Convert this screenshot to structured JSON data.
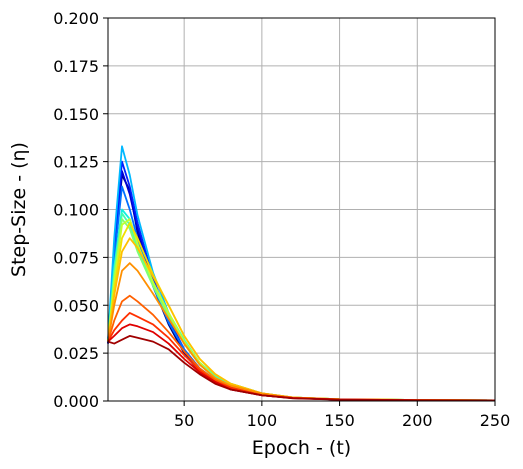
{
  "chart_data": {
    "type": "line",
    "title": "",
    "xlabel": "Epoch - (t)",
    "ylabel": "Step-Size - (η)",
    "xlim": [
      1,
      250
    ],
    "ylim": [
      0,
      0.2
    ],
    "xticks": [
      50,
      100,
      150,
      200,
      250
    ],
    "xtick_labels": [
      "50",
      "100",
      "150",
      "200",
      "250"
    ],
    "yticks": [
      0,
      0.025,
      0.05,
      0.075,
      0.1,
      0.125,
      0.15,
      0.175,
      0.2
    ],
    "ytick_labels": [
      "0.000",
      "0.025",
      "0.050",
      "0.075",
      "0.100",
      "0.125",
      "0.150",
      "0.175",
      "0.200"
    ],
    "grid": true,
    "colormap": "jet",
    "series": [
      {
        "color": "#000080",
        "x": [
          1,
          5,
          10,
          15,
          20,
          30,
          40,
          50,
          60,
          70,
          80,
          100,
          120,
          150,
          200,
          250
        ],
        "y": [
          0.03,
          0.075,
          0.118,
          0.11,
          0.088,
          0.06,
          0.04,
          0.025,
          0.015,
          0.01,
          0.006,
          0.003,
          0.0015,
          0.0008,
          0.0004,
          0.0003
        ]
      },
      {
        "color": "#0000d0",
        "x": [
          1,
          5,
          10,
          15,
          20,
          30,
          40,
          50,
          60,
          70,
          80,
          100,
          120,
          150,
          200,
          250
        ],
        "y": [
          0.03,
          0.078,
          0.12,
          0.108,
          0.09,
          0.062,
          0.042,
          0.026,
          0.016,
          0.011,
          0.007,
          0.003,
          0.0016,
          0.0008,
          0.0004,
          0.0003
        ]
      },
      {
        "color": "#0020ff",
        "x": [
          1,
          5,
          10,
          15,
          20,
          30,
          40,
          50,
          60,
          70,
          80,
          100,
          120,
          150,
          200,
          250
        ],
        "y": [
          0.031,
          0.08,
          0.125,
          0.112,
          0.093,
          0.064,
          0.043,
          0.027,
          0.017,
          0.011,
          0.007,
          0.003,
          0.0016,
          0.0008,
          0.0004,
          0.0003
        ]
      },
      {
        "color": "#0070ff",
        "x": [
          1,
          5,
          10,
          15,
          20,
          30,
          40,
          50,
          60,
          70,
          80,
          100,
          120,
          150,
          200,
          250
        ],
        "y": [
          0.031,
          0.074,
          0.112,
          0.1,
          0.085,
          0.06,
          0.041,
          0.027,
          0.017,
          0.011,
          0.007,
          0.003,
          0.0016,
          0.0008,
          0.0004,
          0.0003
        ]
      },
      {
        "color": "#00b8ff",
        "x": [
          1,
          5,
          10,
          15,
          20,
          30,
          40,
          50,
          60,
          70,
          80,
          100,
          120,
          150,
          200,
          250
        ],
        "y": [
          0.032,
          0.085,
          0.133,
          0.118,
          0.097,
          0.067,
          0.046,
          0.03,
          0.019,
          0.012,
          0.008,
          0.004,
          0.0018,
          0.0009,
          0.0005,
          0.0003
        ]
      },
      {
        "color": "#10f0e0",
        "x": [
          1,
          5,
          10,
          15,
          20,
          30,
          40,
          50,
          60,
          70,
          80,
          100,
          120,
          150,
          200,
          250
        ],
        "y": [
          0.031,
          0.07,
          0.1,
          0.095,
          0.082,
          0.06,
          0.044,
          0.03,
          0.02,
          0.013,
          0.009,
          0.004,
          0.0018,
          0.0009,
          0.0005,
          0.0003
        ]
      },
      {
        "color": "#40ffb0",
        "x": [
          1,
          5,
          10,
          15,
          20,
          30,
          40,
          50,
          60,
          70,
          80,
          100,
          120,
          150,
          200,
          250
        ],
        "y": [
          0.031,
          0.068,
          0.098,
          0.092,
          0.08,
          0.062,
          0.046,
          0.032,
          0.02,
          0.013,
          0.009,
          0.004,
          0.0018,
          0.0009,
          0.0005,
          0.0003
        ]
      },
      {
        "color": "#80ff70",
        "x": [
          1,
          5,
          10,
          15,
          20,
          30,
          40,
          50,
          60,
          70,
          80,
          100,
          120,
          150,
          200,
          250
        ],
        "y": [
          0.031,
          0.065,
          0.095,
          0.09,
          0.078,
          0.06,
          0.044,
          0.03,
          0.019,
          0.012,
          0.008,
          0.004,
          0.0018,
          0.0009,
          0.0005,
          0.0003
        ]
      },
      {
        "color": "#c0ff30",
        "x": [
          1,
          5,
          10,
          15,
          20,
          30,
          40,
          50,
          60,
          70,
          80,
          100,
          120,
          150,
          200,
          250
        ],
        "y": [
          0.031,
          0.062,
          0.092,
          0.095,
          0.082,
          0.062,
          0.046,
          0.031,
          0.02,
          0.012,
          0.008,
          0.004,
          0.0018,
          0.0009,
          0.0005,
          0.0003
        ]
      },
      {
        "color": "#f0e000",
        "x": [
          1,
          5,
          10,
          15,
          20,
          30,
          40,
          50,
          60,
          70,
          80,
          100,
          120,
          150,
          200,
          250
        ],
        "y": [
          0.031,
          0.058,
          0.085,
          0.093,
          0.085,
          0.066,
          0.05,
          0.034,
          0.022,
          0.014,
          0.009,
          0.004,
          0.0018,
          0.0009,
          0.0005,
          0.0003
        ]
      },
      {
        "color": "#ffc000",
        "x": [
          1,
          5,
          10,
          15,
          20,
          30,
          40,
          50,
          60,
          70,
          80,
          100,
          120,
          150,
          200,
          250
        ],
        "y": [
          0.031,
          0.055,
          0.078,
          0.085,
          0.08,
          0.065,
          0.05,
          0.034,
          0.022,
          0.014,
          0.009,
          0.004,
          0.0018,
          0.0009,
          0.0005,
          0.0003
        ]
      },
      {
        "color": "#ff9000",
        "x": [
          1,
          5,
          10,
          15,
          20,
          30,
          40,
          50,
          60,
          70,
          80,
          100,
          120,
          150,
          200,
          250
        ],
        "y": [
          0.031,
          0.05,
          0.068,
          0.072,
          0.068,
          0.056,
          0.043,
          0.03,
          0.019,
          0.012,
          0.008,
          0.004,
          0.0018,
          0.0009,
          0.0005,
          0.0003
        ]
      },
      {
        "color": "#ff6000",
        "x": [
          1,
          5,
          10,
          15,
          20,
          30,
          40,
          50,
          60,
          70,
          80,
          100,
          120,
          150,
          200,
          250
        ],
        "y": [
          0.031,
          0.042,
          0.052,
          0.055,
          0.052,
          0.045,
          0.036,
          0.026,
          0.017,
          0.011,
          0.007,
          0.003,
          0.0016,
          0.0008,
          0.0004,
          0.0003
        ]
      },
      {
        "color": "#ff3000",
        "x": [
          1,
          5,
          10,
          15,
          20,
          30,
          40,
          50,
          60,
          70,
          80,
          100,
          120,
          150,
          200,
          250
        ],
        "y": [
          0.031,
          0.037,
          0.042,
          0.046,
          0.044,
          0.04,
          0.033,
          0.024,
          0.016,
          0.01,
          0.007,
          0.003,
          0.0016,
          0.0008,
          0.0004,
          0.0003
        ]
      },
      {
        "color": "#e00000",
        "x": [
          1,
          5,
          10,
          15,
          20,
          30,
          40,
          50,
          60,
          70,
          80,
          100,
          120,
          150,
          200,
          250
        ],
        "y": [
          0.031,
          0.034,
          0.038,
          0.04,
          0.039,
          0.036,
          0.03,
          0.022,
          0.015,
          0.01,
          0.006,
          0.003,
          0.0015,
          0.0008,
          0.0004,
          0.0003
        ]
      },
      {
        "color": "#a00000",
        "x": [
          1,
          5,
          10,
          15,
          20,
          30,
          40,
          50,
          60,
          70,
          80,
          100,
          120,
          150,
          200,
          250
        ],
        "y": [
          0.031,
          0.03,
          0.032,
          0.034,
          0.033,
          0.031,
          0.027,
          0.02,
          0.014,
          0.009,
          0.006,
          0.003,
          0.0014,
          0.0007,
          0.0004,
          0.0003
        ]
      }
    ]
  }
}
